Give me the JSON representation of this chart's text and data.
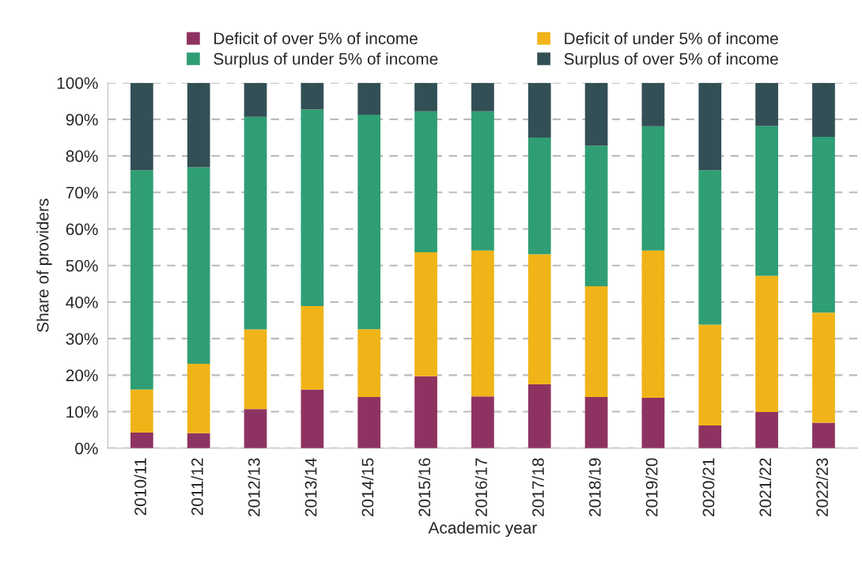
{
  "chart_data": {
    "type": "bar",
    "stacked": true,
    "xlabel": "Academic year",
    "ylabel": "Share of providers",
    "categories": [
      "2010/11",
      "2011/12",
      "2012/13",
      "2013/14",
      "2014/15",
      "2015/16",
      "2016/17",
      "2017/18",
      "2018/19",
      "2019/20",
      "2020/21",
      "2021/22",
      "2022/23"
    ],
    "series": [
      {
        "name": "Deficit of over 5% of income",
        "color": "#8e3361",
        "values": [
          4.3,
          4.1,
          10.7,
          16.1,
          14.0,
          19.7,
          14.2,
          17.5,
          14.0,
          13.8,
          6.2,
          9.9,
          7.0
        ]
      },
      {
        "name": "Deficit of under 5% of income",
        "color": "#f0b418",
        "values": [
          11.8,
          19.0,
          21.8,
          22.8,
          18.6,
          33.9,
          39.9,
          35.6,
          30.3,
          40.3,
          27.6,
          37.3,
          30.1
        ]
      },
      {
        "name": "Surplus of under 5% of income",
        "color": "#2f9e74",
        "values": [
          60.0,
          53.8,
          58.2,
          53.8,
          58.7,
          38.6,
          38.1,
          31.9,
          38.5,
          34.0,
          42.3,
          41.0,
          48.1
        ]
      },
      {
        "name": "Surplus of over 5% of income",
        "color": "#334f56",
        "values": [
          23.9,
          23.1,
          9.3,
          7.3,
          8.7,
          7.8,
          7.8,
          15.0,
          17.2,
          11.9,
          23.9,
          11.8,
          14.8
        ]
      }
    ],
    "ylim": [
      0,
      100
    ],
    "yticks": [
      {
        "value": 0,
        "label": "0%"
      },
      {
        "value": 10,
        "label": "10%"
      },
      {
        "value": 20,
        "label": "20%"
      },
      {
        "value": 30,
        "label": "30%"
      },
      {
        "value": 40,
        "label": "40%"
      },
      {
        "value": 50,
        "label": "50%"
      },
      {
        "value": 60,
        "label": "60%"
      },
      {
        "value": 70,
        "label": "70%"
      },
      {
        "value": 80,
        "label": "80%"
      },
      {
        "value": 90,
        "label": "90%"
      },
      {
        "value": 100,
        "label": "100%"
      }
    ],
    "grid": "y",
    "legend": "top"
  }
}
